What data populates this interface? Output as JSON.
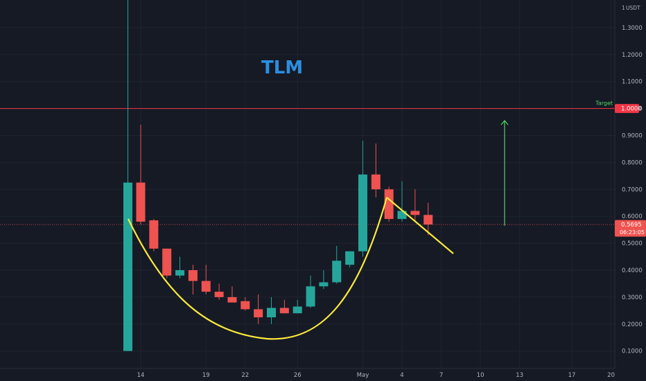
{
  "chart_data": {
    "type": "candlestick",
    "title": "TLM",
    "currency": "USDT",
    "y_axis_top_label": "1",
    "ylim": [
      0.07,
      1.43
    ],
    "y_ticks": [
      "0.1000",
      "0.2000",
      "0.3000",
      "0.4000",
      "0.5000",
      "0.6000",
      "0.7000",
      "0.8000",
      "0.9000",
      "1.0000",
      "1.1000",
      "1.2000",
      "1.3000"
    ],
    "x_ticks": [
      {
        "label": "14",
        "day": 0
      },
      {
        "label": "19",
        "day": 5
      },
      {
        "label": "22",
        "day": 8
      },
      {
        "label": "26",
        "day": 12
      },
      {
        "label": "May",
        "day": 17
      },
      {
        "label": "4",
        "day": 20
      },
      {
        "label": "7",
        "day": 23
      },
      {
        "label": "10",
        "day": 26
      },
      {
        "label": "13",
        "day": 29
      },
      {
        "label": "17",
        "day": 33
      },
      {
        "label": "20",
        "day": 36
      }
    ],
    "candles": [
      {
        "day": -1,
        "open": 0.1,
        "high": 1.42,
        "low": 0.1,
        "close": 0.725
      },
      {
        "day": 0,
        "open": 0.725,
        "high": 0.94,
        "low": 0.57,
        "close": 0.58
      },
      {
        "day": 1,
        "open": 0.585,
        "high": 0.59,
        "low": 0.47,
        "close": 0.48
      },
      {
        "day": 2,
        "open": 0.48,
        "high": 0.48,
        "low": 0.37,
        "close": 0.38
      },
      {
        "day": 3,
        "open": 0.38,
        "high": 0.45,
        "low": 0.37,
        "close": 0.4
      },
      {
        "day": 4,
        "open": 0.4,
        "high": 0.42,
        "low": 0.31,
        "close": 0.36
      },
      {
        "day": 5,
        "open": 0.36,
        "high": 0.42,
        "low": 0.31,
        "close": 0.32
      },
      {
        "day": 6,
        "open": 0.32,
        "high": 0.35,
        "low": 0.29,
        "close": 0.3
      },
      {
        "day": 7,
        "open": 0.3,
        "high": 0.34,
        "low": 0.28,
        "close": 0.28
      },
      {
        "day": 8,
        "open": 0.285,
        "high": 0.3,
        "low": 0.25,
        "close": 0.255
      },
      {
        "day": 9,
        "open": 0.255,
        "high": 0.31,
        "low": 0.2,
        "close": 0.225
      },
      {
        "day": 10,
        "open": 0.225,
        "high": 0.3,
        "low": 0.2,
        "close": 0.26
      },
      {
        "day": 11,
        "open": 0.26,
        "high": 0.29,
        "low": 0.24,
        "close": 0.24
      },
      {
        "day": 12,
        "open": 0.24,
        "high": 0.29,
        "low": 0.24,
        "close": 0.265
      },
      {
        "day": 13,
        "open": 0.265,
        "high": 0.38,
        "low": 0.26,
        "close": 0.34
      },
      {
        "day": 14,
        "open": 0.34,
        "high": 0.4,
        "low": 0.33,
        "close": 0.355
      },
      {
        "day": 15,
        "open": 0.355,
        "high": 0.49,
        "low": 0.35,
        "close": 0.435
      },
      {
        "day": 16,
        "open": 0.42,
        "high": 0.47,
        "low": 0.41,
        "close": 0.47
      },
      {
        "day": 17,
        "open": 0.47,
        "high": 0.88,
        "low": 0.45,
        "close": 0.755
      },
      {
        "day": 18,
        "open": 0.755,
        "high": 0.87,
        "low": 0.67,
        "close": 0.7
      },
      {
        "day": 19,
        "open": 0.7,
        "high": 0.71,
        "low": 0.58,
        "close": 0.59
      },
      {
        "day": 20,
        "open": 0.59,
        "high": 0.73,
        "low": 0.58,
        "close": 0.62
      },
      {
        "day": 21,
        "open": 0.62,
        "high": 0.7,
        "low": 0.58,
        "close": 0.605
      },
      {
        "day": 22,
        "open": 0.605,
        "high": 0.65,
        "low": 0.53,
        "close": 0.5695
      }
    ],
    "target_level": 1.0,
    "target_label": "Target",
    "target_price_label": "1.0000",
    "current_price_label": "0.5695",
    "countdown_label": "06:23:05",
    "annotations": [
      {
        "type": "cup-curve",
        "color": "#ffeb3b"
      },
      {
        "type": "down-trend-line",
        "color": "#ffeb3b"
      },
      {
        "type": "up-arrow",
        "color": "#4cd964",
        "from": 0.565,
        "to": 0.955
      }
    ],
    "colors": {
      "up": "#26a69a",
      "down": "#ef5350",
      "background": "#161a25",
      "grid": "#1f2430",
      "target_line": "#f23645",
      "title": "#2b8fe0",
      "annotation_yellow": "#ffeb3b",
      "arrow_green": "#4cd964",
      "target_text": "#4cd964"
    }
  }
}
